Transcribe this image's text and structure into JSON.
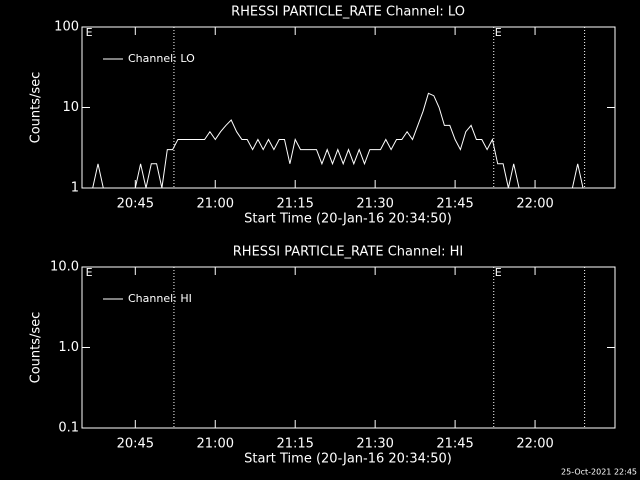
{
  "chart_data": [
    {
      "type": "line",
      "title": "RHESSI PARTICLE_RATE Channel: LO",
      "xlabel": "Start Time (20-Jan-16 20:34:50)",
      "ylabel": "Counts/sec",
      "ylog": true,
      "ylim": [
        1,
        100
      ],
      "yticks": [
        1,
        10,
        100
      ],
      "xlim": [
        1235,
        1335
      ],
      "xticks": [
        {
          "value": 1245,
          "label": "20:45"
        },
        {
          "value": 1260,
          "label": "21:00"
        },
        {
          "value": 1275,
          "label": "21:15"
        },
        {
          "value": 1290,
          "label": "21:30"
        },
        {
          "value": 1305,
          "label": "21:45"
        },
        {
          "value": 1320,
          "label": "22:00"
        }
      ],
      "vlines": [
        1252.25,
        1312.25,
        1329.3
      ],
      "annotations": [
        {
          "text": "E",
          "x": 1235.5
        },
        {
          "text": "E",
          "x": 1312.25
        }
      ],
      "legend": "upper left",
      "x": [
        1236,
        1237,
        1238,
        1239,
        1240,
        1241,
        1242,
        1243,
        1244,
        1245,
        1246,
        1247,
        1248,
        1249,
        1250,
        1251,
        1252,
        1253,
        1254,
        1255,
        1256,
        1257,
        1258,
        1259,
        1260,
        1261,
        1262,
        1263,
        1264,
        1265,
        1266,
        1267,
        1268,
        1269,
        1270,
        1271,
        1272,
        1273,
        1274,
        1275,
        1276,
        1277,
        1278,
        1279,
        1280,
        1281,
        1282,
        1283,
        1284,
        1285,
        1286,
        1287,
        1288,
        1289,
        1290,
        1291,
        1292,
        1293,
        1294,
        1295,
        1296,
        1297,
        1298,
        1299,
        1300,
        1301,
        1302,
        1303,
        1304,
        1305,
        1306,
        1307,
        1308,
        1309,
        1310,
        1311,
        1312,
        1313,
        1314,
        1315,
        1316,
        1317,
        1318,
        1319,
        1320,
        1321,
        1322,
        1323,
        1324,
        1325,
        1326,
        1327,
        1328,
        1329
      ],
      "series": [
        {
          "name": "Channel: LO",
          "color": "#ffffff",
          "values": [
            1,
            1,
            2,
            1,
            1,
            1,
            1,
            1,
            1,
            1,
            2,
            1,
            2,
            2,
            1,
            3,
            3,
            4,
            4,
            4,
            4,
            4,
            4,
            5,
            4,
            5,
            6,
            7,
            5,
            4,
            4,
            3,
            4,
            3,
            4,
            3,
            4,
            4,
            2,
            4,
            3,
            3,
            3,
            3,
            2,
            3,
            2,
            3,
            2,
            3,
            2,
            3,
            2,
            3,
            3,
            3,
            4,
            3,
            4,
            4,
            5,
            4,
            6,
            9,
            15,
            14,
            10,
            6,
            6,
            4,
            3,
            5,
            6,
            4,
            4,
            3,
            4,
            2,
            2,
            1,
            2,
            1,
            1,
            1,
            1,
            1,
            1,
            1,
            1,
            1,
            1,
            1,
            2,
            1
          ]
        }
      ]
    },
    {
      "type": "line",
      "title": "RHESSI PARTICLE_RATE Channel: HI",
      "xlabel": "Start Time (20-Jan-16 20:34:50)",
      "ylabel": "Counts/sec",
      "ylog": true,
      "ylim": [
        0.1,
        10
      ],
      "yticks": [
        0.1,
        {
          "value": 1,
          "label": "1.0"
        },
        {
          "value": 10,
          "label": "10.0"
        }
      ],
      "xlim": [
        1235,
        1335
      ],
      "xticks": [
        {
          "value": 1245,
          "label": "20:45"
        },
        {
          "value": 1260,
          "label": "21:00"
        },
        {
          "value": 1275,
          "label": "21:15"
        },
        {
          "value": 1290,
          "label": "21:30"
        },
        {
          "value": 1305,
          "label": "21:45"
        },
        {
          "value": 1320,
          "label": "22:00"
        }
      ],
      "vlines": [
        1252.25,
        1312.25,
        1329.3
      ],
      "annotations": [
        {
          "text": "E",
          "x": 1235.5
        },
        {
          "text": "E",
          "x": 1312.25
        }
      ],
      "legend": "upper left",
      "x": [],
      "series": [
        {
          "name": "Channel: HI",
          "color": "#ffffff",
          "values": []
        }
      ]
    }
  ],
  "footer": "25-Oct-2021 22:45"
}
